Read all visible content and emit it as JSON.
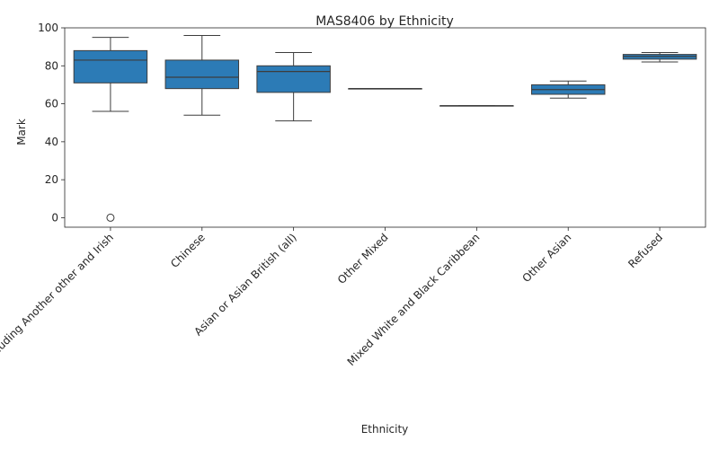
{
  "chart_data": {
    "type": "box",
    "title": "MAS8406 by Ethnicity",
    "xlabel": "Ethnicity",
    "ylabel": "Mark",
    "ylim": [
      -5,
      100
    ],
    "yticks": [
      0,
      20,
      40,
      60,
      80,
      100
    ],
    "box_color": "#2c7bb6",
    "line_color": "#3d3d3d",
    "categories": [
      "White including Another other and Irish",
      "Chinese",
      "Asian or Asian British (all)",
      "Other Mixed",
      "Mixed White and Black Caribbean",
      "Other Asian",
      "Refused"
    ],
    "boxes": [
      {
        "whisker_low": 56,
        "q1": 71,
        "median": 83,
        "q3": 88,
        "whisker_high": 95,
        "outliers": [
          0
        ]
      },
      {
        "whisker_low": 54,
        "q1": 68,
        "median": 74,
        "q3": 83,
        "whisker_high": 96,
        "outliers": []
      },
      {
        "whisker_low": 51,
        "q1": 66,
        "median": 77,
        "q3": 80,
        "whisker_high": 87,
        "outliers": []
      },
      {
        "whisker_low": 68,
        "q1": 68,
        "median": 68,
        "q3": 68,
        "whisker_high": 68,
        "outliers": []
      },
      {
        "whisker_low": 59,
        "q1": 59,
        "median": 59,
        "q3": 59,
        "whisker_high": 59,
        "outliers": []
      },
      {
        "whisker_low": 63,
        "q1": 65,
        "median": 67.5,
        "q3": 70,
        "whisker_high": 72,
        "outliers": []
      },
      {
        "whisker_low": 82,
        "q1": 83.5,
        "median": 85,
        "q3": 86,
        "whisker_high": 87,
        "outliers": []
      }
    ]
  }
}
